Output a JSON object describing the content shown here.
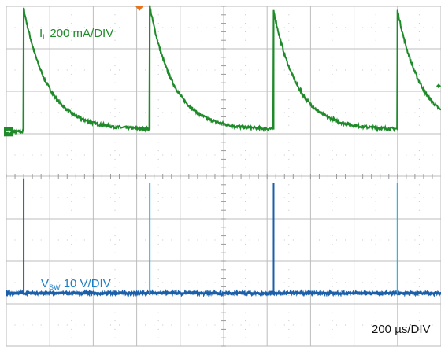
{
  "traces": {
    "inductor_current": {
      "label_main": "I",
      "label_sub": "L",
      "label_scale": "200 mA/DIV",
      "color": "#1f8a2a"
    },
    "switch_voltage": {
      "label_main": "V",
      "label_sub": "SW",
      "label_scale": "10 V/DIV",
      "color": "#1b5fa8",
      "spike_color": "#29b6e8"
    }
  },
  "timebase": {
    "label": "200 µs/DIV"
  },
  "chart_data": {
    "type": "line",
    "xlabel": "200 µs/DIV",
    "x_unit": "µs",
    "x_divisions": 10,
    "y_divisions": 8,
    "xlim": [
      0,
      2000
    ],
    "grid": true,
    "trigger_marker_color": "#e8731a",
    "series": [
      {
        "name": "IL",
        "scale": "200 mA/DIV",
        "unit": "mA",
        "ground_level_div": 5.05,
        "peaks": [
          {
            "t": 80,
            "value": 580
          },
          {
            "t": 660,
            "value": 590
          },
          {
            "t": 1230,
            "value": 570
          },
          {
            "t": 1800,
            "value": 570
          }
        ],
        "floor_value": 10,
        "decay_tau_us": 110
      },
      {
        "name": "VSW",
        "scale": "10 V/DIV",
        "unit": "V",
        "ground_level_div": 1.25,
        "spikes": [
          {
            "t": 80,
            "value": 27
          },
          {
            "t": 660,
            "value": 26
          },
          {
            "t": 1230,
            "value": 26
          },
          {
            "t": 1800,
            "value": 26
          }
        ]
      }
    ]
  }
}
